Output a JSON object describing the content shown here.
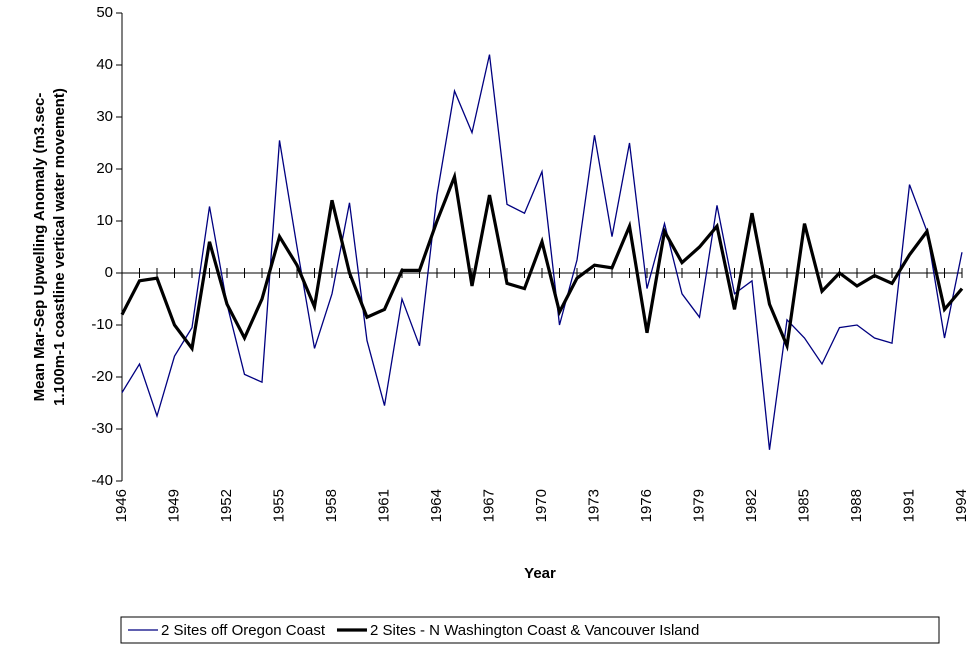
{
  "chart_data": {
    "type": "line",
    "y_label": [
      "Mean Mar-Sep Upwelling Anomaly (m3.sec-",
      "1.100m-1 coastline vertical water movement)"
    ],
    "x_label": "Year",
    "x": [
      1946,
      1947,
      1948,
      1949,
      1950,
      1951,
      1952,
      1953,
      1954,
      1955,
      1956,
      1957,
      1958,
      1959,
      1960,
      1961,
      1962,
      1963,
      1964,
      1965,
      1966,
      1967,
      1968,
      1969,
      1970,
      1971,
      1972,
      1973,
      1974,
      1975,
      1976,
      1977,
      1978,
      1979,
      1980,
      1981,
      1982,
      1983,
      1984,
      1985,
      1986,
      1987,
      1988,
      1989,
      1990,
      1991,
      1992,
      1993,
      1994
    ],
    "series": [
      {
        "name": "2 Sites off Oregon Coast",
        "color": "#000080",
        "width": 1.3,
        "values": [
          -23,
          -17.5,
          -27.5,
          -16,
          -10.5,
          12.8,
          -6,
          -19.5,
          -21,
          25.5,
          5,
          -14.5,
          -4,
          13.5,
          -13,
          -25.5,
          -5,
          -14,
          15,
          35,
          27,
          42,
          13.2,
          11.5,
          19.5,
          -10,
          2.5,
          26.5,
          7,
          25,
          -3,
          9.5,
          -4,
          -8.5,
          13,
          -4,
          -1.5,
          -34,
          -9,
          -12.5,
          -17.5,
          -10.5,
          -10,
          -12.5,
          -13.5,
          17,
          8,
          -12.5,
          4
        ]
      },
      {
        "name": "2 Sites - N Washington Coast & Vancouver Island",
        "color": "#000000",
        "width": 3.2,
        "values": [
          -8,
          -1.5,
          -1,
          -10,
          -14.5,
          6,
          -6,
          -12.5,
          -5,
          7,
          1.5,
          -6.5,
          14,
          0,
          -8.5,
          -7,
          0.5,
          0.5,
          10,
          18.5,
          -2.5,
          15,
          -2,
          -3,
          6,
          -7.5,
          -1,
          1.5,
          1,
          9,
          -11.5,
          8,
          2,
          5,
          9,
          -7,
          11.5,
          -6,
          -14,
          9.5,
          -3.5,
          0,
          -2.5,
          -0.5,
          -2,
          3.5,
          8,
          -7,
          -3
        ]
      }
    ],
    "xlim": [
      1946,
      1994
    ],
    "xticks": [
      1946,
      1949,
      1952,
      1955,
      1958,
      1961,
      1964,
      1967,
      1970,
      1973,
      1976,
      1979,
      1982,
      1985,
      1988,
      1991,
      1994
    ],
    "ylim": [
      -40,
      50
    ],
    "yticks": [
      -40,
      -30,
      -20,
      -10,
      0,
      10,
      20,
      30,
      40,
      50
    ],
    "legend": "bottom"
  }
}
